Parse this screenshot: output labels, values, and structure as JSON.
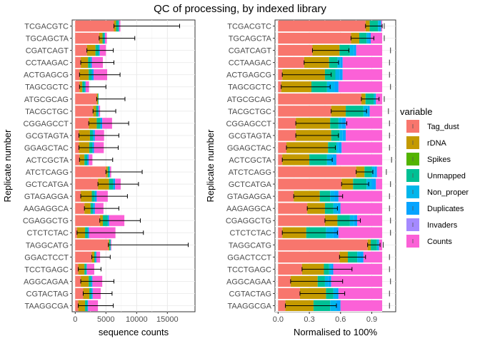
{
  "chart_data": {
    "type": "bar",
    "title": "QC of processing, by indexed library",
    "legend": {
      "title": "variable",
      "placement": "right",
      "entries": [
        {
          "name": "Tag_dust",
          "color": "#F8766D"
        },
        {
          "name": "rDNA",
          "color": "#C49A00"
        },
        {
          "name": "Spikes",
          "color": "#53B400"
        },
        {
          "name": "Unmapped",
          "color": "#00C094"
        },
        {
          "name": "Non_proper",
          "color": "#00B6EB"
        },
        {
          "name": "Duplicates",
          "color": "#06A4FF"
        },
        {
          "name": "Invaders",
          "color": "#A58AFF"
        },
        {
          "name": "Counts",
          "color": "#FB61D7"
        }
      ]
    },
    "categories": [
      "TCGACGTC",
      "TGCAGCTA",
      "CGATCAGT",
      "CCTAAGAC",
      "ACTGAGCG",
      "TAGCGCTC",
      "ATGCGCAG",
      "TACGCTGC",
      "CGGAGCCT",
      "GCGTAGTA",
      "GGAGCTAC",
      "ACTCGCTA",
      "ATCTCAGG",
      "GCTCATGA",
      "GTAGAGGA",
      "AAGAGGCA",
      "CGAGGCTG",
      "CTCTCTAC",
      "TAGGCATG",
      "GGACTCCT",
      "TCCTGAGC",
      "AGGCAGAA",
      "CGTACTAG",
      "TAAGGCGA"
    ],
    "charts": [
      {
        "type": "bar",
        "stacked": true,
        "orientation": "horizontal",
        "xlabel": "sequence counts",
        "ylabel": "Replicate number",
        "xlim": [
          -500,
          19500
        ],
        "xticks": [
          0,
          5000,
          10000,
          15000
        ],
        "grid": true,
        "series": [
          {
            "name": "Tag_dust",
            "values": [
              6300,
              3900,
              1900,
              900,
              700,
              700,
              3500,
              2900,
              2200,
              600,
              600,
              700,
              5000,
              3700,
              900,
              1500,
              4000,
              300,
              5400,
              2700,
              500,
              900,
              1300,
              500
            ]
          },
          {
            "name": "rDNA",
            "values": [
              350,
              550,
              1400,
              1200,
              1500,
              450,
              200,
              500,
              1300,
              1800,
              1700,
              800,
              300,
              1800,
              1800,
              1000,
              500,
              1300,
              150,
              400,
              1000,
              1300,
              1000,
              1100
            ]
          },
          {
            "name": "Spikes",
            "values": [
              0,
              0,
              0,
              0,
              0,
              0,
              0,
              0,
              0,
              0,
              0,
              0,
              0,
              0,
              0,
              0,
              0,
              0,
              0,
              0,
              0,
              0,
              0,
              0
            ]
          },
          {
            "name": "Unmapped",
            "values": [
              400,
              300,
              500,
              400,
              500,
              400,
              100,
              300,
              600,
              500,
              500,
              450,
              250,
              700,
              500,
              400,
              800,
              450,
              200,
              200,
              300,
              400,
              350,
              350
            ]
          },
          {
            "name": "Non_proper",
            "values": [
              0,
              0,
              0,
              0,
              0,
              0,
              0,
              0,
              0,
              0,
              0,
              0,
              0,
              0,
              0,
              0,
              0,
              0,
              0,
              0,
              0,
              0,
              0,
              0
            ]
          },
          {
            "name": "Duplicates",
            "values": [
              100,
              100,
              200,
              200,
              300,
              150,
              0,
              150,
              300,
              300,
              250,
              250,
              100,
              300,
              300,
              300,
              200,
              200,
              50,
              150,
              100,
              200,
              200,
              150
            ]
          },
          {
            "name": "Invaders",
            "values": [
              0,
              0,
              0,
              0,
              0,
              0,
              0,
              0,
              0,
              0,
              0,
              0,
              0,
              0,
              0,
              0,
              0,
              0,
              0,
              0,
              0,
              0,
              0,
              0
            ]
          },
          {
            "name": "Counts",
            "values": [
              200,
              300,
              1000,
              1800,
              2200,
              550,
              0,
              200,
              1600,
              1500,
              1600,
              600,
              200,
              900,
              1800,
              1400,
              2500,
              4300,
              100,
              600,
              1200,
              1600,
              1300,
              1600
            ]
          }
        ],
        "error_bars": [
          {
            "left": 6300,
            "right": 17000
          },
          {
            "left": 3900,
            "right": 9700
          },
          {
            "left": 1900,
            "right": 6200
          },
          {
            "left": 900,
            "right": 6300
          },
          {
            "left": 700,
            "right": 7300
          },
          {
            "left": 700,
            "right": 5000
          },
          {
            "left": 3500,
            "right": 8100
          },
          {
            "left": 2900,
            "right": 6600
          },
          {
            "left": 2200,
            "right": 8700
          },
          {
            "left": 600,
            "right": 7100
          },
          {
            "left": 600,
            "right": 7000
          },
          {
            "left": 700,
            "right": 6100
          },
          {
            "left": 5000,
            "right": 10900
          },
          {
            "left": 3700,
            "right": 10300
          },
          {
            "left": 900,
            "right": 8500
          },
          {
            "left": 1500,
            "right": 7100
          },
          {
            "left": 4000,
            "right": 10600
          },
          {
            "left": 300,
            "right": 11100
          },
          {
            "left": 5400,
            "right": 18400
          },
          {
            "left": 2700,
            "right": 5700
          },
          {
            "left": 500,
            "right": 4200
          },
          {
            "left": 900,
            "right": 6300
          },
          {
            "left": 1300,
            "right": 6000
          },
          {
            "left": 500,
            "right": 6200
          }
        ]
      },
      {
        "type": "bar",
        "stacked": true,
        "orientation": "horizontal",
        "xlabel": "Normalised to 100%",
        "ylabel": "Replicate number",
        "xlim": [
          -0.03,
          1.13
        ],
        "xticks": [
          0.0,
          0.3,
          0.6,
          0.9
        ],
        "xtick_labels": [
          "0.0",
          "0.3",
          "0.6",
          "0.9"
        ],
        "grid": true,
        "series": [
          {
            "name": "Tag_dust",
            "values": [
              0.84,
              0.7,
              0.33,
              0.25,
              0.04,
              0.03,
              0.8,
              0.51,
              0.17,
              0.17,
              0.08,
              0.04,
              0.75,
              0.61,
              0.15,
              0.28,
              0.45,
              0.04,
              0.86,
              0.59,
              0.23,
              0.12,
              0.21,
              0.07
            ]
          },
          {
            "name": "rDNA",
            "values": [
              0.04,
              0.08,
              0.26,
              0.24,
              0.41,
              0.29,
              0.04,
              0.14,
              0.33,
              0.34,
              0.4,
              0.26,
              0.08,
              0.11,
              0.25,
              0.17,
              0.12,
              0.23,
              0.03,
              0.08,
              0.21,
              0.26,
              0.25,
              0.27
            ]
          },
          {
            "name": "Spikes",
            "values": [
              0,
              0,
              0,
              0,
              0,
              0,
              0,
              0,
              0,
              0,
              0,
              0,
              0,
              0,
              0,
              0,
              0,
              0,
              0,
              0,
              0,
              0,
              0,
              0
            ]
          },
          {
            "name": "Unmapped",
            "values": [
              0.08,
              0.07,
              0.1,
              0.08,
              0.1,
              0.15,
              0.08,
              0.17,
              0.08,
              0.08,
              0.08,
              0.17,
              0.07,
              0.13,
              0.1,
              0.08,
              0.12,
              0.19,
              0.06,
              0.09,
              0.05,
              0.07,
              0.07,
              0.16
            ]
          },
          {
            "name": "Non_proper",
            "values": [
              0.03,
              0.02,
              0.04,
              0.03,
              0.04,
              0.07,
              0.02,
              0.04,
              0.03,
              0.03,
              0.02,
              0.05,
              0.03,
              0.05,
              0.04,
              0.04,
              0.04,
              0.07,
              0.02,
              0.03,
              0.02,
              0.03,
              0.03,
              0.06
            ]
          },
          {
            "name": "Duplicates",
            "values": [
              0,
              0.02,
              0.02,
              0.02,
              0.03,
              0.04,
              0,
              0.02,
              0.04,
              0.03,
              0.03,
              0.04,
              0.02,
              0.04,
              0.04,
              0.03,
              0.03,
              0.05,
              0,
              0.03,
              0.02,
              0.03,
              0.02,
              0.04
            ]
          },
          {
            "name": "Invaders",
            "values": [
              0,
              0,
              0,
              0,
              0,
              0,
              0,
              0,
              0,
              0,
              0,
              0,
              0,
              0,
              0,
              0,
              0,
              0,
              0,
              0,
              0,
              0,
              0,
              0
            ]
          },
          {
            "name": "Counts",
            "values": [
              0.01,
              0.11,
              0.25,
              0.38,
              0.38,
              0.42,
              0.06,
              0.12,
              0.35,
              0.35,
              0.39,
              0.44,
              0.05,
              0.06,
              0.42,
              0.4,
              0.24,
              0.42,
              0.03,
              0.18,
              0.47,
              0.49,
              0.42,
              0.4
            ]
          }
        ],
        "error_bars": [
          {
            "left": 0.84,
            "right": 1.0
          },
          {
            "left": 0.7,
            "right": 0.92
          },
          {
            "left": 0.33,
            "right": 0.68
          },
          {
            "left": 0.25,
            "right": 0.58
          },
          {
            "left": 0.04,
            "right": 0.51
          },
          {
            "left": 0.03,
            "right": 0.5
          },
          {
            "left": 0.8,
            "right": 0.97
          },
          {
            "left": 0.51,
            "right": 0.85
          },
          {
            "left": 0.17,
            "right": 0.66
          },
          {
            "left": 0.17,
            "right": 0.58
          },
          {
            "left": 0.08,
            "right": 0.55
          },
          {
            "left": 0.04,
            "right": 0.52
          },
          {
            "left": 0.75,
            "right": 0.91
          },
          {
            "left": 0.61,
            "right": 0.87
          },
          {
            "left": 0.15,
            "right": 0.62
          },
          {
            "left": 0.28,
            "right": 0.57
          },
          {
            "left": 0.45,
            "right": 0.79
          },
          {
            "left": 0.04,
            "right": 0.57
          },
          {
            "left": 0.86,
            "right": 0.98
          },
          {
            "left": 0.59,
            "right": 0.84
          },
          {
            "left": 0.23,
            "right": 0.71
          },
          {
            "left": 0.12,
            "right": 0.62
          },
          {
            "left": 0.21,
            "right": 0.64
          },
          {
            "left": 0.07,
            "right": 0.56
          }
        ],
        "whiskers_right": [
          1.02,
          1.02,
          1.08,
          1.07,
          1.07,
          1.08,
          1.02,
          1.06,
          1.07,
          1.07,
          1.07,
          1.09,
          1.04,
          1.08,
          1.07,
          1.07,
          1.08,
          1.08,
          1.01,
          1.07,
          1.07,
          1.08,
          1.07,
          1.07
        ]
      }
    ]
  }
}
